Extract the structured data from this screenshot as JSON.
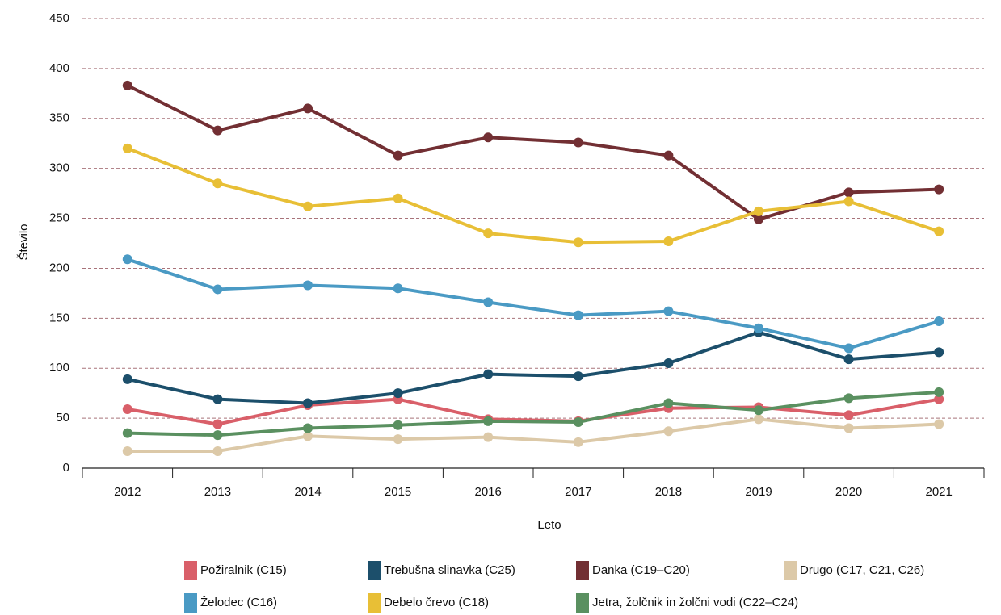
{
  "chart_data": {
    "type": "line",
    "x_label": "Leto",
    "y_label": "Število",
    "categories": [
      "2012",
      "2013",
      "2014",
      "2015",
      "2016",
      "2017",
      "2018",
      "2019",
      "2020",
      "2021"
    ],
    "series": [
      {
        "name": "Požiralnik (C15)",
        "color": "#d95f69",
        "values": [
          59,
          44,
          63,
          69,
          49,
          47,
          60,
          61,
          53,
          69
        ]
      },
      {
        "name": "Trebušna slinavka (C25)",
        "color": "#1c4f6b",
        "values": [
          89,
          69,
          65,
          75,
          94,
          92,
          105,
          136,
          109,
          116
        ]
      },
      {
        "name": "Danka (C19–C20)",
        "color": "#722f33",
        "values": [
          383,
          338,
          360,
          313,
          331,
          326,
          313,
          249,
          276,
          279
        ]
      },
      {
        "name": "Drugo (C17, C21, C26)",
        "color": "#dcc9a8",
        "values": [
          17,
          17,
          32,
          29,
          31,
          26,
          37,
          49,
          40,
          44
        ]
      },
      {
        "name": "Želodec (C16)",
        "color": "#4a9ac4",
        "values": [
          209,
          179,
          183,
          180,
          166,
          153,
          157,
          140,
          120,
          147
        ]
      },
      {
        "name": "Debelo črevo (C18)",
        "color": "#e8bf36",
        "values": [
          320,
          285,
          262,
          270,
          235,
          226,
          227,
          257,
          267,
          237
        ]
      },
      {
        "name": "Jetra, žolčnik in žolčni vodi (C22–C24)",
        "color": "#5a9060",
        "values": [
          35,
          33,
          40,
          43,
          47,
          46,
          65,
          58,
          70,
          76
        ]
      }
    ],
    "ylim": [
      0,
      450
    ],
    "yticks": [
      0,
      50,
      100,
      150,
      200,
      250,
      300,
      350,
      400,
      450
    ],
    "grid": true,
    "legend": "bottom"
  }
}
